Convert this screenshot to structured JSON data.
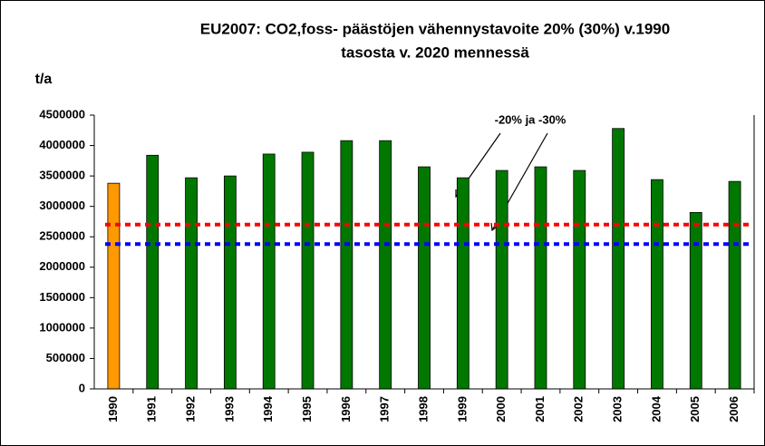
{
  "chart_data": {
    "type": "bar",
    "title": [
      "EU2007: CO2,foss- päästöjen vähennystavoite 20% (30%) v.1990",
      "tasosta v. 2020 mennessä"
    ],
    "y_label": "t/a",
    "annotation": "-20% ja -30%",
    "categories": [
      "1990",
      "1991",
      "1992",
      "1993",
      "1994",
      "1995",
      "1996",
      "1997",
      "1998",
      "1999",
      "2000",
      "2001",
      "2002",
      "2003",
      "2004",
      "2005",
      "2006"
    ],
    "values": [
      3380000,
      3840000,
      3470000,
      3500000,
      3860000,
      3890000,
      4080000,
      4080000,
      3650000,
      3470000,
      3590000,
      3650000,
      3590000,
      4280000,
      3440000,
      2900000,
      3410000
    ],
    "colors": [
      "#ff9900",
      "#007800",
      "#007800",
      "#007800",
      "#007800",
      "#007800",
      "#007800",
      "#007800",
      "#007800",
      "#007800",
      "#007800",
      "#007800",
      "#007800",
      "#007800",
      "#007800",
      "#007800",
      "#007800"
    ],
    "reference_lines": [
      {
        "value": 2700000,
        "color": "#ff0000"
      },
      {
        "value": 2380000,
        "color": "#0000ff"
      }
    ],
    "ylim": [
      0,
      4500000
    ],
    "yticks": [
      0,
      500000,
      1000000,
      1500000,
      2000000,
      2500000,
      3000000,
      3500000,
      4000000,
      4500000
    ]
  }
}
